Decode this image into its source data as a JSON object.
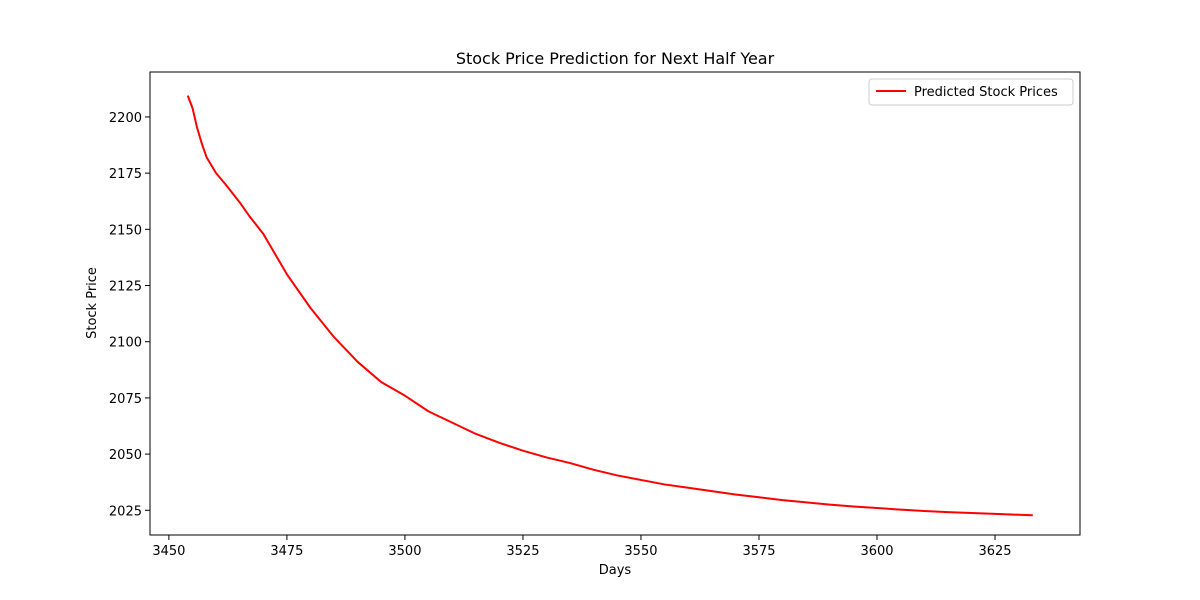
{
  "chart_data": {
    "type": "line",
    "title": "Stock Price Prediction for Next Half Year",
    "xlabel": "Days",
    "ylabel": "Stock Price",
    "xlim": [
      3446,
      3643
    ],
    "ylim": [
      2014,
      2220
    ],
    "xticks": [
      3450,
      3475,
      3500,
      3525,
      3550,
      3575,
      3600,
      3625
    ],
    "yticks": [
      2025,
      2050,
      2075,
      2100,
      2125,
      2150,
      2175,
      2200
    ],
    "grid": false,
    "legend_position": "top-right",
    "series": [
      {
        "name": "Predicted Stock Prices",
        "color": "#ff0000",
        "x": [
          3454,
          3455,
          3456,
          3457,
          3458,
          3460,
          3462,
          3465,
          3467,
          3470,
          3475,
          3480,
          3485,
          3490,
          3495,
          3500,
          3505,
          3510,
          3515,
          3520,
          3525,
          3530,
          3535,
          3540,
          3545,
          3550,
          3555,
          3560,
          3565,
          3570,
          3575,
          3580,
          3585,
          3590,
          3595,
          3600,
          3605,
          3610,
          3615,
          3620,
          3625,
          3630,
          3633
        ],
        "y": [
          2209.5,
          2204,
          2195,
          2188,
          2182,
          2175,
          2170,
          2162,
          2156,
          2148,
          2130,
          2115,
          2102,
          2091,
          2082,
          2076,
          2069,
          2064,
          2059,
          2055,
          2051.5,
          2048.5,
          2046,
          2043,
          2040.5,
          2038.5,
          2036.5,
          2035,
          2033.5,
          2032,
          2030.8,
          2029.5,
          2028.5,
          2027.5,
          2026.7,
          2026,
          2025.3,
          2024.7,
          2024.2,
          2023.8,
          2023.4,
          2023,
          2022.8
        ]
      }
    ]
  }
}
